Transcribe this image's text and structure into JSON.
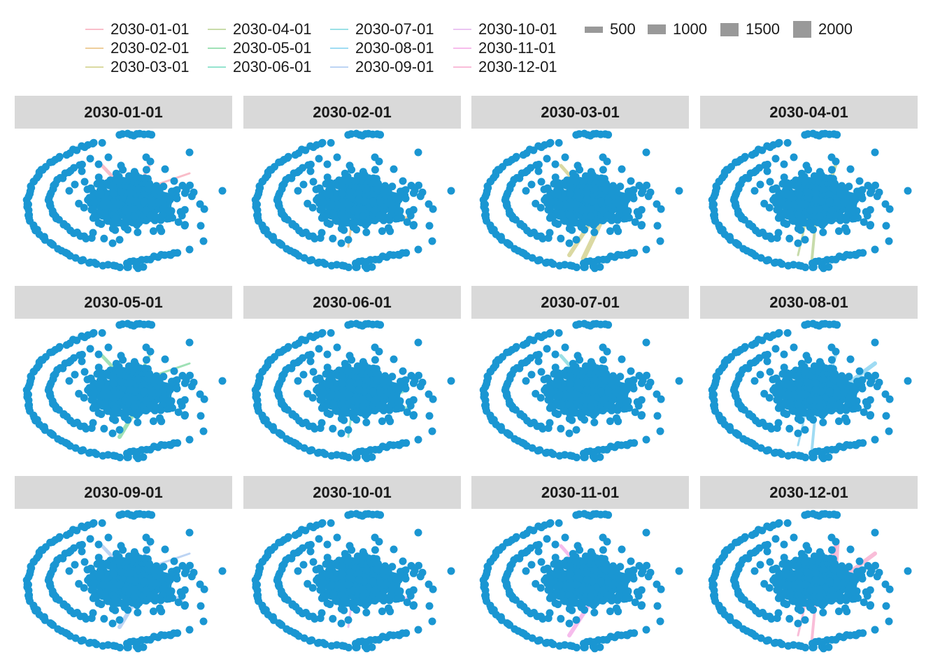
{
  "chart_data": {
    "type": "network-facets",
    "node_color": "#1a96d2",
    "edge_legend": [
      {
        "label": "2030-01-01",
        "color": "#f7a8b8"
      },
      {
        "label": "2030-02-01",
        "color": "#e8bd7a"
      },
      {
        "label": "2030-03-01",
        "color": "#cfcd83"
      },
      {
        "label": "2030-04-01",
        "color": "#b5d08e"
      },
      {
        "label": "2030-05-01",
        "color": "#7fd79e"
      },
      {
        "label": "2030-06-01",
        "color": "#72dbbf"
      },
      {
        "label": "2030-07-01",
        "color": "#7ad6dd"
      },
      {
        "label": "2030-08-01",
        "color": "#7fd0ef"
      },
      {
        "label": "2030-09-01",
        "color": "#a7c6f0"
      },
      {
        "label": "2030-10-01",
        "color": "#e4b1ee"
      },
      {
        "label": "2030-11-01",
        "color": "#f4a6e6"
      },
      {
        "label": "2030-12-01",
        "color": "#f7a7cc"
      }
    ],
    "size_legend": [
      {
        "label": "500",
        "value": 500
      },
      {
        "label": "1000",
        "value": 1000
      },
      {
        "label": "1500",
        "value": 1500
      },
      {
        "label": "2000",
        "value": 2000
      }
    ],
    "facets": [
      {
        "title": "2030-01-01"
      },
      {
        "title": "2030-02-01"
      },
      {
        "title": "2030-03-01"
      },
      {
        "title": "2030-04-01"
      },
      {
        "title": "2030-05-01"
      },
      {
        "title": "2030-06-01"
      },
      {
        "title": "2030-07-01"
      },
      {
        "title": "2030-08-01"
      },
      {
        "title": "2030-09-01"
      },
      {
        "title": "2030-10-01"
      },
      {
        "title": "2030-11-01"
      },
      {
        "title": "2030-12-01"
      }
    ]
  }
}
